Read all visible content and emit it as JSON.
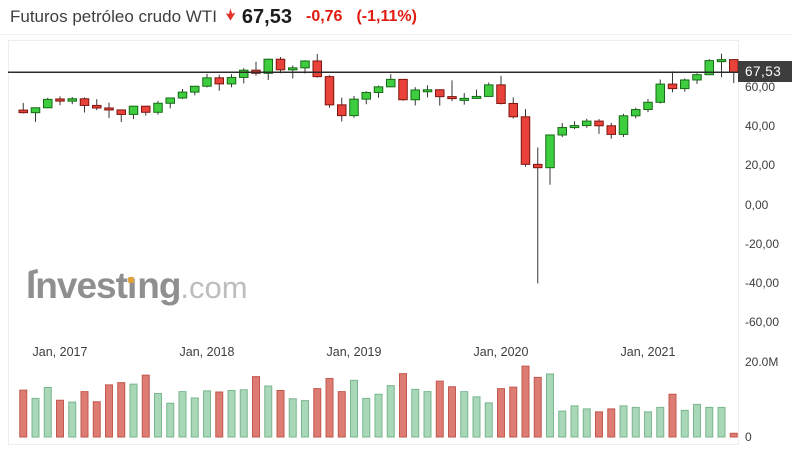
{
  "header": {
    "title": "Futuros petróleo crudo WTI",
    "price": "67,53",
    "change": "-0,76",
    "change_pct": "(-1,11%)"
  },
  "price_badge": "67,53",
  "watermark": {
    "part1": "Invest",
    "part2": "ı",
    "part3": "ng",
    "part4": ".com"
  },
  "colors": {
    "accent_red": "#e3322a",
    "change_red": "#e11b12",
    "candle_up_fill": "#3ecd3e",
    "candle_up_border": "#166b16",
    "candle_down_fill": "#e8423a",
    "candle_down_border": "#7e150f",
    "wick": "#373737",
    "vol_up_fill": "#a9d8b8",
    "vol_up_border": "#79b58e",
    "vol_down_fill": "#dd7c72",
    "vol_down_border": "#c2584e",
    "price_line": "#2b2b2b",
    "badge_bg": "#3d3d3d"
  },
  "chart_data": {
    "type": "candlestick+volume",
    "title": "Futuros petróleo crudo WTI",
    "current_price": 67.53,
    "price_line_value": 67.53,
    "x_ticks": [
      "Jan, 2017",
      "Jan, 2018",
      "Jan, 2019",
      "Jan, 2020",
      "Jan, 2021"
    ],
    "x_tick_candle_indices": [
      3,
      15,
      27,
      39,
      51
    ],
    "y_ticks_price_labels": [
      "60,00",
      "40,00",
      "20,00",
      "0,00",
      "-20,00",
      "-40,00",
      "-60,00"
    ],
    "y_ticks_price_values": [
      60,
      40,
      20,
      0,
      -20,
      -40,
      -60
    ],
    "y_ticks_volume_labels": [
      "20.0M",
      "0"
    ],
    "y_ticks_volume_values": [
      20,
      0
    ],
    "ylim_price": [
      -68,
      84
    ],
    "ylim_volume_millions": [
      0,
      21
    ],
    "grid": false,
    "legend": false,
    "candles_note": "each candle = [month, open, high, low, close, volume_millions]",
    "candles": [
      [
        "2016-10",
        48.2,
        51.9,
        46.5,
        46.9,
        12.5
      ],
      [
        "2016-11",
        46.9,
        49.4,
        42.2,
        49.4,
        10.3
      ],
      [
        "2016-12",
        49.4,
        54.5,
        49.2,
        53.7,
        13.2
      ],
      [
        "2017-01",
        53.9,
        55.2,
        50.7,
        52.8,
        9.8
      ],
      [
        "2017-02",
        52.8,
        54.9,
        51.2,
        54.0,
        9.3
      ],
      [
        "2017-03",
        54.0,
        54.8,
        47.0,
        50.6,
        12.1
      ],
      [
        "2017-04",
        50.6,
        53.8,
        48.2,
        49.3,
        9.4
      ],
      [
        "2017-05",
        49.3,
        52.0,
        44.1,
        48.3,
        13.9
      ],
      [
        "2017-06",
        48.3,
        48.4,
        42.1,
        46.0,
        14.5
      ],
      [
        "2017-07",
        46.0,
        50.4,
        43.6,
        50.2,
        14.1
      ],
      [
        "2017-08",
        50.2,
        50.4,
        45.4,
        47.1,
        16.5
      ],
      [
        "2017-09",
        47.1,
        52.9,
        45.9,
        51.7,
        11.6
      ],
      [
        "2017-10",
        51.7,
        54.5,
        49.1,
        54.4,
        9.0
      ],
      [
        "2017-11",
        54.4,
        59.0,
        53.9,
        57.4,
        12.1
      ],
      [
        "2017-12",
        57.4,
        60.5,
        55.8,
        60.4,
        10.4
      ],
      [
        "2018-01",
        60.4,
        66.7,
        59.8,
        64.7,
        12.3
      ],
      [
        "2018-02",
        64.7,
        66.3,
        58.1,
        61.6,
        12.0
      ],
      [
        "2018-03",
        61.6,
        66.6,
        59.9,
        64.9,
        12.4
      ],
      [
        "2018-04",
        64.9,
        69.6,
        61.8,
        68.6,
        12.6
      ],
      [
        "2018-05",
        68.6,
        72.9,
        65.8,
        67.0,
        16.1
      ],
      [
        "2018-06",
        67.0,
        74.5,
        63.6,
        74.2,
        13.6
      ],
      [
        "2018-07",
        74.2,
        75.3,
        67.0,
        68.8,
        12.4
      ],
      [
        "2018-08",
        68.8,
        71.0,
        64.4,
        69.8,
        10.2
      ],
      [
        "2018-09",
        69.8,
        73.7,
        66.9,
        73.3,
        9.7
      ],
      [
        "2018-10",
        73.3,
        76.9,
        64.8,
        65.3,
        12.9
      ],
      [
        "2018-11",
        65.3,
        66.0,
        49.4,
        50.9,
        15.6
      ],
      [
        "2018-12",
        50.9,
        54.6,
        42.4,
        45.4,
        12.1
      ],
      [
        "2019-01",
        45.4,
        55.4,
        44.3,
        53.8,
        15.1
      ],
      [
        "2019-02",
        53.8,
        57.9,
        51.2,
        57.2,
        10.3
      ],
      [
        "2019-03",
        57.2,
        60.7,
        54.5,
        60.1,
        11.4
      ],
      [
        "2019-04",
        60.1,
        66.6,
        60.0,
        63.9,
        13.7
      ],
      [
        "2019-05",
        63.9,
        64.0,
        53.0,
        53.5,
        16.9
      ],
      [
        "2019-06",
        53.5,
        59.9,
        50.6,
        58.5,
        12.7
      ],
      [
        "2019-07",
        58.5,
        60.9,
        54.7,
        58.6,
        12.1
      ],
      [
        "2019-08",
        58.6,
        58.8,
        50.5,
        55.1,
        14.9
      ],
      [
        "2019-09",
        55.1,
        63.4,
        52.8,
        54.1,
        13.4
      ],
      [
        "2019-10",
        54.1,
        56.9,
        51.0,
        54.2,
        12.1
      ],
      [
        "2019-11",
        54.2,
        58.7,
        54.0,
        55.2,
        10.7
      ],
      [
        "2019-12",
        55.2,
        62.3,
        55.0,
        61.1,
        9.1
      ],
      [
        "2020-01",
        61.1,
        65.7,
        51.1,
        51.6,
        12.9
      ],
      [
        "2020-02",
        51.6,
        54.7,
        43.9,
        44.8,
        13.3
      ],
      [
        "2020-03",
        44.8,
        48.7,
        19.3,
        20.5,
        18.9
      ],
      [
        "2020-04",
        20.5,
        29.1,
        -40.3,
        18.8,
        15.9
      ],
      [
        "2020-05",
        18.8,
        35.5,
        10.1,
        35.5,
        16.8
      ],
      [
        "2020-06",
        35.5,
        41.6,
        34.4,
        39.3,
        6.9
      ],
      [
        "2020-07",
        39.3,
        42.5,
        38.5,
        40.3,
        8.3
      ],
      [
        "2020-08",
        40.3,
        43.8,
        39.2,
        42.6,
        7.5
      ],
      [
        "2020-09",
        42.6,
        43.6,
        36.1,
        40.2,
        6.7
      ],
      [
        "2020-10",
        40.2,
        41.7,
        33.6,
        35.8,
        7.5
      ],
      [
        "2020-11",
        35.8,
        46.3,
        34.5,
        45.3,
        8.3
      ],
      [
        "2020-12",
        45.3,
        49.4,
        44.0,
        48.5,
        7.9
      ],
      [
        "2021-01",
        48.5,
        53.9,
        47.2,
        52.2,
        6.7
      ],
      [
        "2021-02",
        52.2,
        63.8,
        51.6,
        61.5,
        7.9
      ],
      [
        "2021-03",
        61.5,
        68.0,
        57.3,
        59.2,
        11.4
      ],
      [
        "2021-04",
        59.2,
        64.4,
        57.6,
        63.6,
        7.1
      ],
      [
        "2021-05",
        63.6,
        67.0,
        61.6,
        66.3,
        8.7
      ],
      [
        "2021-06",
        66.3,
        74.2,
        66.1,
        73.5,
        7.9
      ],
      [
        "2021-07",
        73.5,
        77.0,
        65.0,
        74.0,
        7.9
      ],
      [
        "2021-08",
        74.0,
        74.3,
        62.0,
        67.53,
        1.0
      ]
    ]
  }
}
